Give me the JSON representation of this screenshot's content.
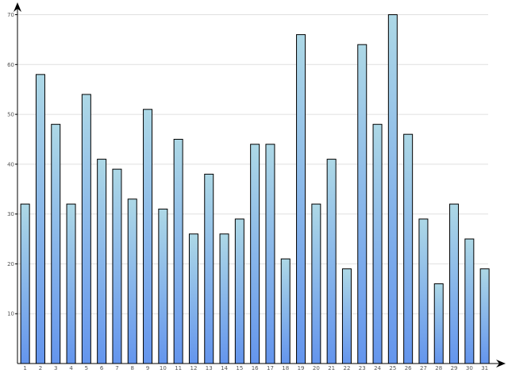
{
  "chart_data": {
    "type": "bar",
    "categories": [
      "1",
      "2",
      "3",
      "4",
      "5",
      "6",
      "7",
      "8",
      "9",
      "10",
      "11",
      "12",
      "13",
      "14",
      "15",
      "16",
      "17",
      "18",
      "19",
      "20",
      "21",
      "22",
      "23",
      "24",
      "25",
      "26",
      "27",
      "28",
      "29",
      "30",
      "31"
    ],
    "values": [
      32,
      58,
      48,
      32,
      54,
      41,
      39,
      33,
      51,
      31,
      45,
      26,
      38,
      26,
      29,
      44,
      44,
      21,
      66,
      32,
      41,
      19,
      64,
      48,
      70,
      46,
      29,
      16,
      32,
      25,
      19
    ],
    "title": "",
    "xlabel": "",
    "ylabel": "",
    "ylim": [
      0,
      70
    ],
    "yticks": [
      10,
      20,
      30,
      40,
      50,
      60,
      70
    ],
    "grid": true,
    "legend": "none",
    "colors": {
      "bar_top": "#add8e6",
      "bar_bottom": "#6495ed",
      "bar_stroke": "#000000",
      "grid": "#e0e0e0",
      "axis": "#000000"
    }
  }
}
